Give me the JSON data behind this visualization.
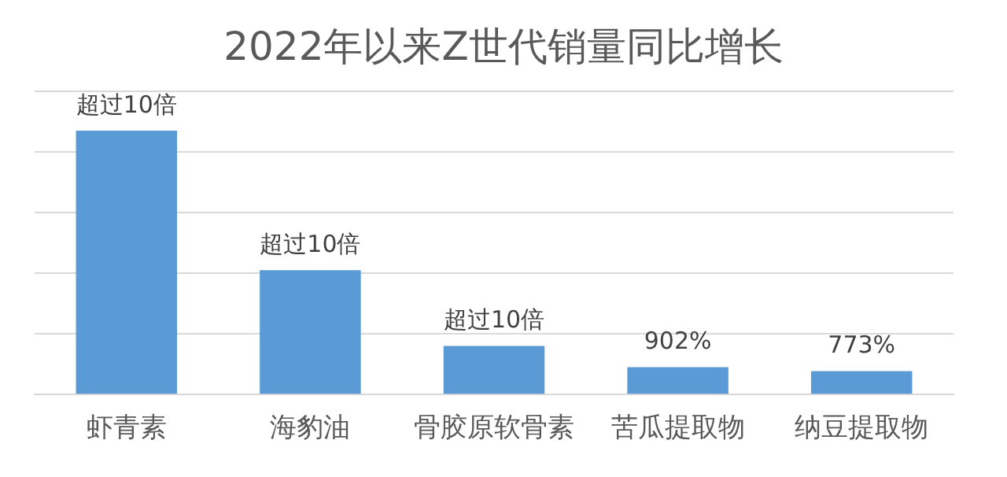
{
  "chart_data": {
    "type": "bar",
    "title": "2022年以来Z世代销量同比增长",
    "categories": [
      "虾青素",
      "海豹油",
      "骨胶原软骨素",
      "苦瓜提取物",
      "纳豆提取物"
    ],
    "values": [
      8700,
      4100,
      1600,
      902,
      773
    ],
    "value_labels": [
      "超过10倍",
      "超过10倍",
      "超过10倍",
      "902%",
      "773%"
    ],
    "color": "#5b9bd5",
    "ylim": [
      0,
      10000
    ],
    "yticks": [
      {
        "value": 0,
        "label": null
      },
      {
        "value": 2000,
        "label": null
      },
      {
        "value": 4000,
        "label": null
      },
      {
        "value": 6000,
        "label": null
      },
      {
        "value": 8000,
        "label": null
      },
      {
        "value": 10000,
        "label": null
      }
    ],
    "grid": "y",
    "legend": false
  }
}
